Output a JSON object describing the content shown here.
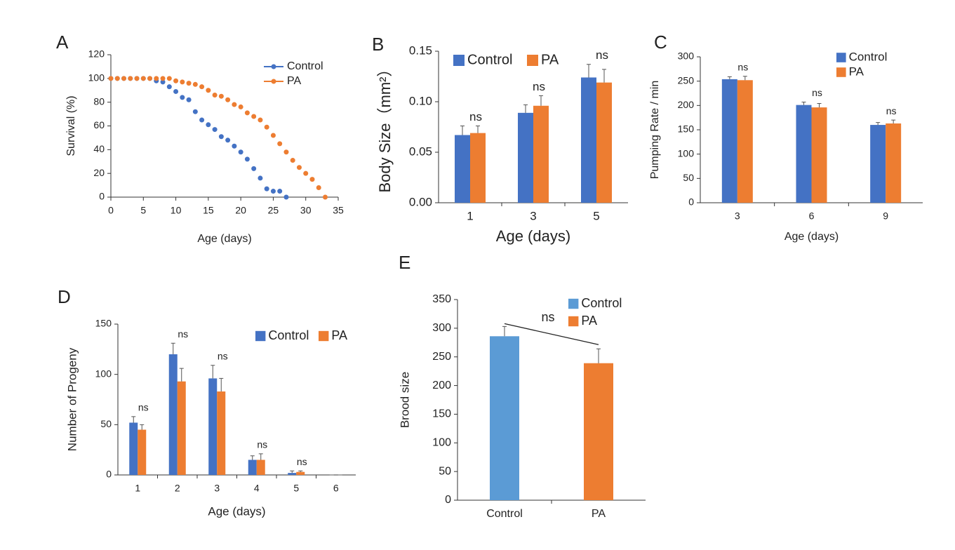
{
  "chart_data": [
    {
      "type": "line",
      "panel_label": "A",
      "x_label": "Age (days)",
      "y_label": "Survival (%)",
      "xlim": [
        0,
        35
      ],
      "xticks": [
        0,
        5,
        10,
        15,
        20,
        25,
        30,
        35
      ],
      "ylim": [
        0,
        120
      ],
      "yticks": [
        0,
        20,
        40,
        60,
        80,
        100,
        120
      ],
      "series": [
        {
          "name": "Control",
          "color": "#4472c4",
          "x": [
            0,
            1,
            2,
            3,
            4,
            5,
            6,
            7,
            8,
            9,
            10,
            11,
            12,
            13,
            14,
            15,
            16,
            17,
            18,
            19,
            20,
            21,
            22,
            23,
            24,
            25,
            26,
            27
          ],
          "values": [
            100,
            100,
            100,
            100,
            100,
            100,
            100,
            98,
            97,
            93,
            89,
            84,
            82,
            72,
            65,
            61,
            57,
            51,
            48,
            43,
            38,
            32,
            24,
            16,
            7,
            5,
            5,
            0
          ]
        },
        {
          "name": "PA",
          "color": "#ed7d31",
          "x": [
            0,
            1,
            2,
            3,
            4,
            5,
            6,
            7,
            8,
            9,
            10,
            11,
            12,
            13,
            14,
            15,
            16,
            17,
            18,
            19,
            20,
            21,
            22,
            23,
            24,
            25,
            26,
            27,
            28,
            29,
            30,
            31,
            32,
            33
          ],
          "values": [
            100,
            100,
            100,
            100,
            100,
            100,
            100,
            100,
            100,
            100,
            98,
            97,
            96,
            95,
            93,
            90,
            86,
            85,
            82,
            78,
            76,
            71,
            68,
            65,
            59,
            52,
            45,
            38,
            31,
            25,
            20,
            15,
            8,
            0
          ]
        }
      ]
    },
    {
      "type": "bar",
      "panel_label": "B",
      "x_label": "Age (days)",
      "y_label": "Body Size（mm²）",
      "categories": [
        "1",
        "3",
        "5"
      ],
      "ylim": [
        0,
        0.15
      ],
      "yticks": [
        {
          "value": 0,
          "label": "0.00"
        },
        {
          "value": 0.05,
          "label": "0.05"
        },
        {
          "value": 0.1,
          "label": "0.10"
        },
        {
          "value": 0.15,
          "label": "0.15"
        }
      ],
      "series": [
        {
          "name": "Control",
          "color": "#4472c4",
          "values": [
            0.067,
            0.089,
            0.124
          ],
          "errors": [
            0.009,
            0.008,
            0.013
          ]
        },
        {
          "name": "PA",
          "color": "#ed7d31",
          "values": [
            0.069,
            0.096,
            0.119
          ],
          "errors": [
            0.007,
            0.01,
            0.013
          ]
        }
      ],
      "annotations": [
        "ns",
        "ns",
        "ns"
      ]
    },
    {
      "type": "bar",
      "panel_label": "C",
      "x_label": "Age (days)",
      "y_label": "Pumping Rate / min",
      "categories": [
        "3",
        "6",
        "9"
      ],
      "ylim": [
        0,
        300
      ],
      "yticks": [
        0,
        50,
        100,
        150,
        200,
        250,
        300
      ],
      "series": [
        {
          "name": "Control",
          "color": "#4472c4",
          "values": [
            254,
            201,
            160
          ],
          "errors": [
            5,
            6,
            5
          ]
        },
        {
          "name": "PA",
          "color": "#ed7d31",
          "values": [
            252,
            196,
            163
          ],
          "errors": [
            8,
            8,
            7
          ]
        }
      ],
      "annotations": [
        "ns",
        "ns",
        "ns"
      ]
    },
    {
      "type": "bar",
      "panel_label": "D",
      "x_label": "Age (days)",
      "y_label": "Number of Progeny",
      "categories": [
        "1",
        "2",
        "3",
        "4",
        "5",
        "6"
      ],
      "ylim": [
        0,
        150
      ],
      "yticks": [
        0,
        50,
        100,
        150
      ],
      "series": [
        {
          "name": "Control",
          "color": "#4472c4",
          "values": [
            52,
            120,
            96,
            15,
            2,
            0
          ],
          "errors": [
            6,
            11,
            13,
            4,
            2,
            0
          ]
        },
        {
          "name": "PA",
          "color": "#ed7d31",
          "values": [
            45,
            93,
            83,
            15,
            3,
            0
          ],
          "errors": [
            5,
            13,
            13,
            6,
            1,
            0
          ]
        }
      ],
      "annotations": [
        "ns",
        "ns",
        "ns",
        "ns",
        "ns"
      ]
    },
    {
      "type": "bar",
      "panel_label": "E",
      "y_label": "Brood size",
      "categories": [
        "Control",
        "PA"
      ],
      "values": [
        286,
        239
      ],
      "errors": [
        17,
        25
      ],
      "colors": [
        "#5b9bd5",
        "#ed7d31"
      ],
      "ylim": [
        0,
        350
      ],
      "yticks": [
        0,
        50,
        100,
        150,
        200,
        250,
        300,
        350
      ],
      "annotations": [
        "ns"
      ]
    }
  ]
}
